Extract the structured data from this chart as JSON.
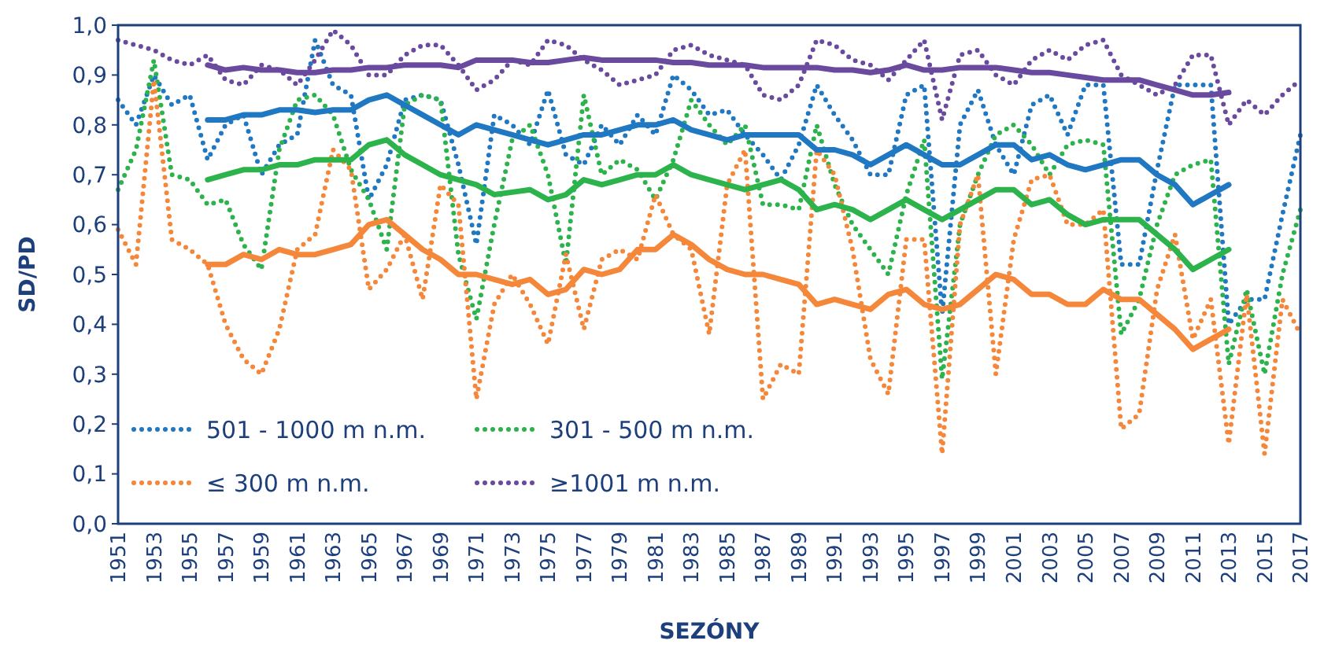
{
  "chart_data": {
    "type": "line",
    "xlabel": "SEZÓNY",
    "ylabel": "SD/PD",
    "x": [
      1951,
      1952,
      1953,
      1954,
      1955,
      1956,
      1957,
      1958,
      1959,
      1960,
      1961,
      1962,
      1963,
      1964,
      1965,
      1966,
      1967,
      1968,
      1969,
      1970,
      1971,
      1972,
      1973,
      1974,
      1975,
      1976,
      1977,
      1978,
      1979,
      1980,
      1981,
      1982,
      1983,
      1984,
      1985,
      1986,
      1987,
      1988,
      1989,
      1990,
      1991,
      1992,
      1993,
      1994,
      1995,
      1996,
      1997,
      1998,
      1999,
      2000,
      2001,
      2002,
      2003,
      2004,
      2005,
      2006,
      2007,
      2008,
      2009,
      2010,
      2011,
      2012,
      2013,
      2014,
      2015,
      2016,
      2017
    ],
    "xlim": [
      1951,
      2017
    ],
    "xticks": [
      1951,
      1953,
      1955,
      1957,
      1959,
      1961,
      1963,
      1965,
      1967,
      1969,
      1971,
      1973,
      1975,
      1977,
      1979,
      1981,
      1983,
      1985,
      1987,
      1989,
      1991,
      1993,
      1995,
      1997,
      1999,
      2001,
      2003,
      2005,
      2007,
      2009,
      2011,
      2013,
      2015,
      2017
    ],
    "ylim": [
      0,
      1
    ],
    "yticks": [
      {
        "value": 0,
        "label": "0,0"
      },
      {
        "value": 0.1,
        "label": "0,1"
      },
      {
        "value": 0.2,
        "label": "0,2"
      },
      {
        "value": 0.3,
        "label": "0,3"
      },
      {
        "value": 0.4,
        "label": "0,4"
      },
      {
        "value": 0.5,
        "label": "0,5"
      },
      {
        "value": 0.6,
        "label": "0,6"
      },
      {
        "value": 0.7,
        "label": "0,7"
      },
      {
        "value": 0.8,
        "label": "0,8"
      },
      {
        "value": 0.9,
        "label": "0,9"
      },
      {
        "value": 1,
        "label": "1,0"
      }
    ],
    "grid": false,
    "legend": "bottom left",
    "marker": "none",
    "series": [
      {
        "name": "501 - 1000 m n.m.",
        "color": "#1f78c1",
        "line_style": "dotted",
        "values": [
          0.85,
          0.8,
          0.9,
          0.84,
          0.86,
          0.73,
          0.8,
          0.82,
          0.7,
          0.76,
          0.78,
          0.97,
          0.88,
          0.86,
          0.65,
          0.72,
          0.85,
          0.86,
          0.85,
          0.72,
          0.56,
          0.82,
          0.8,
          0.76,
          0.87,
          0.74,
          0.72,
          0.8,
          0.76,
          0.82,
          0.78,
          0.9,
          0.87,
          0.82,
          0.83,
          0.78,
          0.74,
          0.69,
          0.76,
          0.88,
          0.82,
          0.77,
          0.7,
          0.7,
          0.86,
          0.88,
          0.42,
          0.8,
          0.87,
          0.76,
          0.7,
          0.84,
          0.86,
          0.78,
          0.88,
          0.88,
          0.52,
          0.52,
          0.71,
          0.88,
          0.88,
          0.88,
          0.4,
          0.45,
          0.45,
          0.62,
          0.78
        ]
      },
      {
        "name": "301 - 500 m n.m.",
        "color": "#2cb34c",
        "line_style": "dotted",
        "values": [
          0.67,
          0.75,
          0.93,
          0.7,
          0.69,
          0.64,
          0.65,
          0.56,
          0.51,
          0.75,
          0.85,
          0.86,
          0.82,
          0.71,
          0.65,
          0.55,
          0.84,
          0.86,
          0.85,
          0.54,
          0.41,
          0.6,
          0.77,
          0.8,
          0.7,
          0.52,
          0.86,
          0.7,
          0.73,
          0.71,
          0.65,
          0.73,
          0.85,
          0.8,
          0.76,
          0.8,
          0.64,
          0.64,
          0.63,
          0.8,
          0.68,
          0.6,
          0.55,
          0.5,
          0.66,
          0.77,
          0.29,
          0.6,
          0.7,
          0.78,
          0.8,
          0.76,
          0.7,
          0.76,
          0.77,
          0.76,
          0.38,
          0.45,
          0.6,
          0.7,
          0.72,
          0.73,
          0.32,
          0.47,
          0.3,
          0.5,
          0.63
        ]
      },
      {
        "name": "≤ 300 m n.m.",
        "color": "#f5873a",
        "line_style": "dotted",
        "values": [
          0.59,
          0.52,
          0.89,
          0.57,
          0.55,
          0.52,
          0.4,
          0.33,
          0.3,
          0.39,
          0.55,
          0.58,
          0.75,
          0.71,
          0.47,
          0.51,
          0.58,
          0.45,
          0.68,
          0.64,
          0.25,
          0.44,
          0.5,
          0.44,
          0.36,
          0.54,
          0.39,
          0.53,
          0.55,
          0.53,
          0.66,
          0.58,
          0.55,
          0.38,
          0.68,
          0.75,
          0.25,
          0.32,
          0.3,
          0.75,
          0.7,
          0.55,
          0.33,
          0.26,
          0.57,
          0.57,
          0.14,
          0.6,
          0.7,
          0.3,
          0.57,
          0.69,
          0.7,
          0.6,
          0.6,
          0.63,
          0.19,
          0.22,
          0.47,
          0.58,
          0.37,
          0.45,
          0.16,
          0.46,
          0.14,
          0.45,
          0.38
        ]
      },
      {
        "name": "≥1001 m n.m.",
        "color": "#6a4a9e",
        "line_style": "dotted",
        "values": [
          0.97,
          0.96,
          0.95,
          0.93,
          0.92,
          0.94,
          0.89,
          0.88,
          0.92,
          0.91,
          0.88,
          0.93,
          0.99,
          0.96,
          0.9,
          0.9,
          0.94,
          0.96,
          0.96,
          0.92,
          0.87,
          0.89,
          0.93,
          0.92,
          0.97,
          0.96,
          0.93,
          0.91,
          0.88,
          0.89,
          0.9,
          0.95,
          0.96,
          0.94,
          0.93,
          0.92,
          0.86,
          0.85,
          0.88,
          0.97,
          0.96,
          0.93,
          0.92,
          0.89,
          0.93,
          0.97,
          0.81,
          0.94,
          0.95,
          0.9,
          0.88,
          0.93,
          0.95,
          0.93,
          0.96,
          0.97,
          0.9,
          0.88,
          0.86,
          0.88,
          0.94,
          0.94,
          0.8,
          0.85,
          0.82,
          0.86,
          0.89
        ]
      },
      {
        "color": "#1f78c1",
        "line_style": "solid",
        "x": [
          1956,
          1957,
          1958,
          1959,
          1960,
          1961,
          1962,
          1963,
          1964,
          1965,
          1966,
          1967,
          1968,
          1969,
          1970,
          1971,
          1972,
          1973,
          1974,
          1975,
          1976,
          1977,
          1978,
          1979,
          1980,
          1981,
          1982,
          1983,
          1984,
          1985,
          1986,
          1987,
          1988,
          1989,
          1990,
          1991,
          1992,
          1993,
          1994,
          1995,
          1996,
          1997,
          1998,
          1999,
          2000,
          2001,
          2002,
          2003,
          2004,
          2005,
          2006,
          2007,
          2008,
          2009,
          2010,
          2011,
          2012,
          2013
        ],
        "values": [
          0.81,
          0.81,
          0.82,
          0.82,
          0.83,
          0.83,
          0.825,
          0.83,
          0.83,
          0.85,
          0.86,
          0.84,
          0.82,
          0.8,
          0.78,
          0.8,
          0.79,
          0.78,
          0.77,
          0.76,
          0.77,
          0.78,
          0.78,
          0.79,
          0.8,
          0.8,
          0.81,
          0.79,
          0.78,
          0.77,
          0.78,
          0.78,
          0.78,
          0.78,
          0.75,
          0.75,
          0.74,
          0.72,
          0.74,
          0.76,
          0.74,
          0.72,
          0.72,
          0.74,
          0.76,
          0.76,
          0.73,
          0.74,
          0.72,
          0.71,
          0.72,
          0.73,
          0.73,
          0.7,
          0.68,
          0.64,
          0.66,
          0.68
        ]
      },
      {
        "color": "#2cb34c",
        "line_style": "solid",
        "x": [
          1956,
          1957,
          1958,
          1959,
          1960,
          1961,
          1962,
          1963,
          1964,
          1965,
          1966,
          1967,
          1968,
          1969,
          1970,
          1971,
          1972,
          1973,
          1974,
          1975,
          1976,
          1977,
          1978,
          1979,
          1980,
          1981,
          1982,
          1983,
          1984,
          1985,
          1986,
          1987,
          1988,
          1989,
          1990,
          1991,
          1992,
          1993,
          1994,
          1995,
          1996,
          1997,
          1998,
          1999,
          2000,
          2001,
          2002,
          2003,
          2004,
          2005,
          2006,
          2007,
          2008,
          2009,
          2010,
          2011,
          2012,
          2013
        ],
        "values": [
          0.69,
          0.7,
          0.71,
          0.71,
          0.72,
          0.72,
          0.73,
          0.73,
          0.73,
          0.76,
          0.77,
          0.74,
          0.72,
          0.7,
          0.69,
          0.68,
          0.66,
          0.665,
          0.67,
          0.65,
          0.66,
          0.69,
          0.68,
          0.69,
          0.7,
          0.7,
          0.72,
          0.7,
          0.69,
          0.68,
          0.67,
          0.68,
          0.69,
          0.67,
          0.63,
          0.64,
          0.63,
          0.61,
          0.63,
          0.65,
          0.63,
          0.61,
          0.63,
          0.65,
          0.67,
          0.67,
          0.64,
          0.65,
          0.62,
          0.6,
          0.61,
          0.61,
          0.61,
          0.58,
          0.55,
          0.51,
          0.53,
          0.55
        ]
      },
      {
        "color": "#f5873a",
        "line_style": "solid",
        "x": [
          1956,
          1957,
          1958,
          1959,
          1960,
          1961,
          1962,
          1963,
          1964,
          1965,
          1966,
          1967,
          1968,
          1969,
          1970,
          1971,
          1972,
          1973,
          1974,
          1975,
          1976,
          1977,
          1978,
          1979,
          1980,
          1981,
          1982,
          1983,
          1984,
          1985,
          1986,
          1987,
          1988,
          1989,
          1990,
          1991,
          1992,
          1993,
          1994,
          1995,
          1996,
          1997,
          1998,
          1999,
          2000,
          2001,
          2002,
          2003,
          2004,
          2005,
          2006,
          2007,
          2008,
          2009,
          2010,
          2011,
          2012,
          2013
        ],
        "values": [
          0.52,
          0.52,
          0.54,
          0.53,
          0.55,
          0.54,
          0.54,
          0.55,
          0.56,
          0.6,
          0.61,
          0.58,
          0.55,
          0.53,
          0.5,
          0.5,
          0.49,
          0.48,
          0.49,
          0.46,
          0.47,
          0.51,
          0.5,
          0.51,
          0.55,
          0.55,
          0.58,
          0.56,
          0.53,
          0.51,
          0.5,
          0.5,
          0.49,
          0.48,
          0.44,
          0.45,
          0.44,
          0.43,
          0.46,
          0.47,
          0.44,
          0.43,
          0.44,
          0.47,
          0.5,
          0.49,
          0.46,
          0.46,
          0.44,
          0.44,
          0.47,
          0.45,
          0.45,
          0.42,
          0.39,
          0.35,
          0.37,
          0.39
        ]
      },
      {
        "color": "#6a4a9e",
        "line_style": "solid",
        "x": [
          1956,
          1957,
          1958,
          1959,
          1960,
          1961,
          1962,
          1963,
          1964,
          1965,
          1966,
          1967,
          1968,
          1969,
          1970,
          1971,
          1972,
          1973,
          1974,
          1975,
          1976,
          1977,
          1978,
          1979,
          1980,
          1981,
          1982,
          1983,
          1984,
          1985,
          1986,
          1987,
          1988,
          1989,
          1990,
          1991,
          1992,
          1993,
          1994,
          1995,
          1996,
          1997,
          1998,
          1999,
          2000,
          2001,
          2002,
          2003,
          2004,
          2005,
          2006,
          2007,
          2008,
          2009,
          2010,
          2011,
          2012,
          2013
        ],
        "values": [
          0.92,
          0.91,
          0.915,
          0.91,
          0.91,
          0.905,
          0.905,
          0.91,
          0.91,
          0.915,
          0.915,
          0.92,
          0.92,
          0.92,
          0.915,
          0.93,
          0.93,
          0.93,
          0.925,
          0.925,
          0.93,
          0.935,
          0.93,
          0.93,
          0.93,
          0.93,
          0.925,
          0.925,
          0.92,
          0.92,
          0.92,
          0.915,
          0.915,
          0.915,
          0.915,
          0.91,
          0.91,
          0.905,
          0.91,
          0.92,
          0.91,
          0.91,
          0.915,
          0.915,
          0.915,
          0.91,
          0.905,
          0.905,
          0.9,
          0.895,
          0.89,
          0.89,
          0.89,
          0.88,
          0.87,
          0.86,
          0.86,
          0.865
        ]
      }
    ]
  }
}
